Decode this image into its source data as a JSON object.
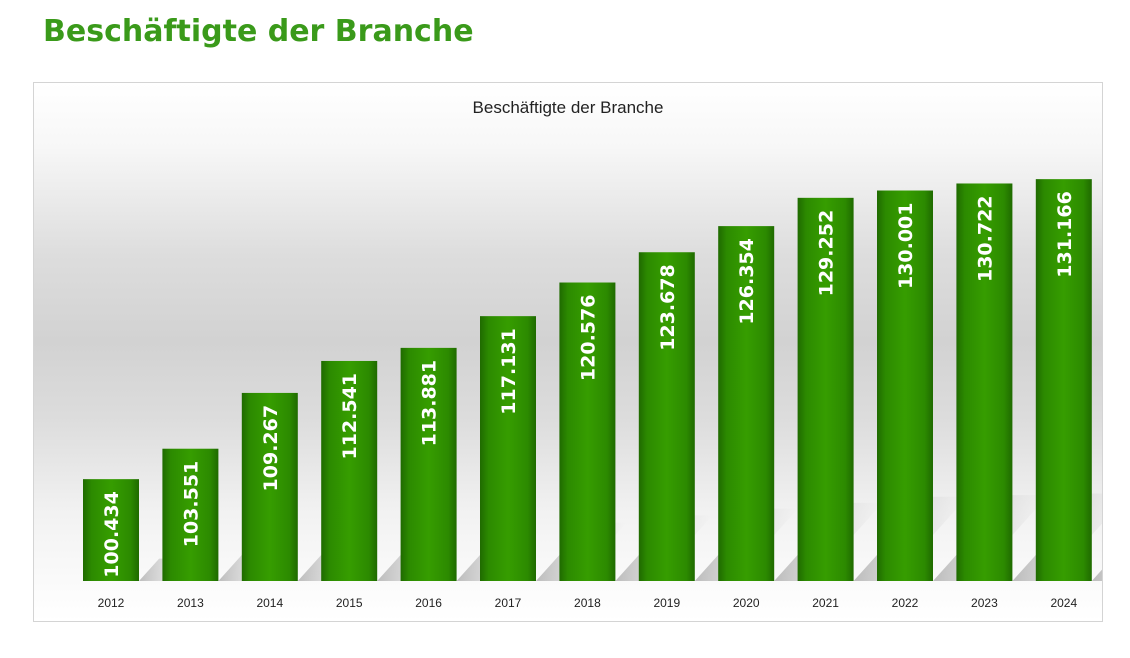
{
  "page": {
    "title": "Beschäftigte der Branche"
  },
  "colors": {
    "title_green": "#3a9a1a",
    "bar_green": "#2f8f00",
    "bar_dark": "#1f6a00",
    "bar_light": "#3aa300"
  },
  "chart_data": {
    "type": "bar",
    "title": "Beschäftigte der Branche",
    "xlabel": "",
    "ylabel": "",
    "categories": [
      "2012",
      "2013",
      "2014",
      "2015",
      "2016",
      "2017",
      "2018",
      "2019",
      "2020",
      "2021",
      "2022",
      "2023",
      "2024"
    ],
    "values": [
      100434,
      103551,
      109267,
      112541,
      113881,
      117131,
      120576,
      123678,
      126354,
      129252,
      130001,
      130722,
      131166
    ],
    "value_labels": [
      "100.434",
      "103.551",
      "109.267",
      "112.541",
      "113.881",
      "117.131",
      "120.576",
      "123.678",
      "126.354",
      "129.252",
      "130.001",
      "130.722",
      "131.166"
    ],
    "ylim": [
      90000,
      132000
    ],
    "grid": false,
    "legend": "none"
  }
}
